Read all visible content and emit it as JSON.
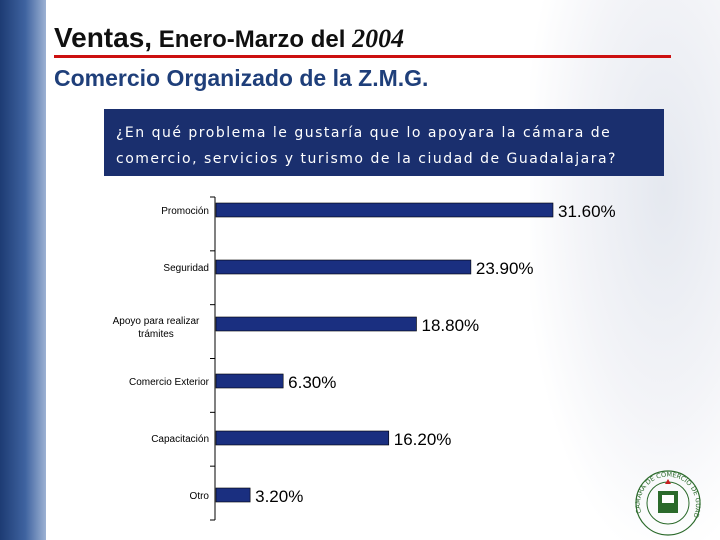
{
  "header": {
    "title_part1": "Ventas,",
    "title_part2": " Enero-Marzo del ",
    "title_part3": "2004",
    "subtitle": "Comercio Organizado de la Z.M.G."
  },
  "question": "¿En qué problema le gustaría que lo apoyara la cámara de comercio, servicios y turismo de la ciudad de Guadalajara?",
  "colors": {
    "bar": "#1a2f80",
    "accent_rule": "#cc1010",
    "question_bg": "#1a2f6e",
    "subtitle": "#1f3f7a",
    "logo": "#2b6a2b"
  },
  "chart_data": {
    "type": "bar",
    "orientation": "horizontal",
    "categories": [
      "Promoción",
      "Seguridad",
      "Apoyo para realizar trámites",
      "Comercio Exterior",
      "Capacitación",
      "Otro"
    ],
    "values": [
      31.6,
      23.9,
      18.8,
      6.3,
      16.2,
      3.2
    ],
    "value_labels": [
      "31.60%",
      "23.90%",
      "18.80%",
      "6.30%",
      "16.20%",
      "3.20%"
    ],
    "unit": "%",
    "xlim": [
      0,
      31.6
    ],
    "grid": false,
    "legend": "none"
  },
  "logo": {
    "icon": "chamber-of-commerce-seal-icon",
    "text": "CAMARA DE COMERCIO DE GUADALAJARA"
  }
}
